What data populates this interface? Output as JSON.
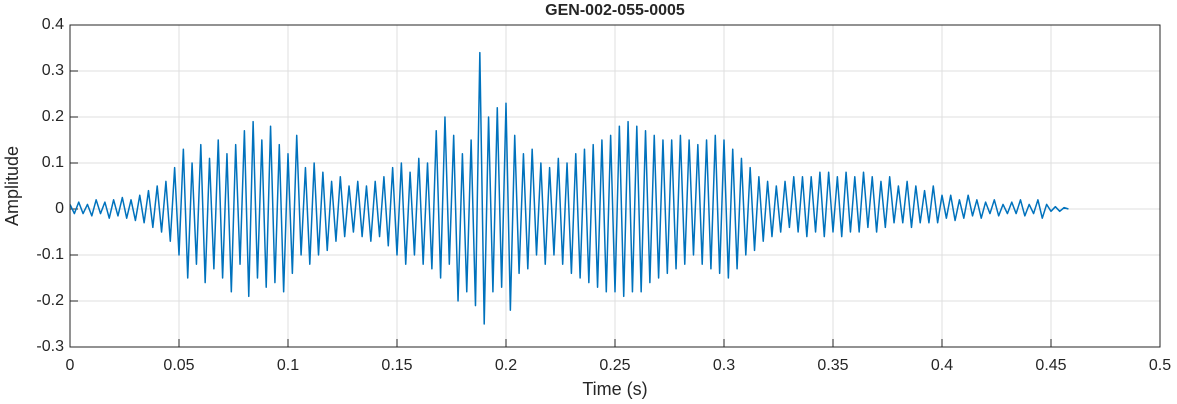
{
  "chart_data": {
    "type": "line",
    "title": "GEN-002-055-0005",
    "xlabel": "Time (s)",
    "ylabel": "Amplitude",
    "xlim": [
      0,
      0.5
    ],
    "ylim": [
      -0.3,
      0.4
    ],
    "xticks": [
      0,
      0.05,
      0.1,
      0.15,
      0.2,
      0.25,
      0.3,
      0.35,
      0.4,
      0.45,
      0.5
    ],
    "yticks": [
      -0.3,
      -0.2,
      -0.1,
      0,
      0.1,
      0.2,
      0.3,
      0.4
    ],
    "grid": true,
    "series": [
      {
        "color": "#0072bd",
        "x": [
          0,
          0.002,
          0.004,
          0.006,
          0.008,
          0.01,
          0.012,
          0.014,
          0.016,
          0.018,
          0.02,
          0.022,
          0.024,
          0.026,
          0.028,
          0.03,
          0.032,
          0.034,
          0.036,
          0.038,
          0.04,
          0.042,
          0.044,
          0.046,
          0.048,
          0.05,
          0.052,
          0.054,
          0.056,
          0.058,
          0.06,
          0.062,
          0.064,
          0.066,
          0.068,
          0.07,
          0.072,
          0.074,
          0.076,
          0.078,
          0.08,
          0.082,
          0.084,
          0.086,
          0.088,
          0.09,
          0.092,
          0.094,
          0.096,
          0.098,
          0.1,
          0.102,
          0.104,
          0.106,
          0.108,
          0.11,
          0.112,
          0.114,
          0.116,
          0.118,
          0.12,
          0.122,
          0.124,
          0.126,
          0.128,
          0.13,
          0.132,
          0.134,
          0.136,
          0.138,
          0.14,
          0.142,
          0.144,
          0.146,
          0.148,
          0.15,
          0.152,
          0.154,
          0.156,
          0.158,
          0.16,
          0.162,
          0.164,
          0.166,
          0.168,
          0.17,
          0.172,
          0.174,
          0.176,
          0.178,
          0.18,
          0.182,
          0.184,
          0.186,
          0.188,
          0.19,
          0.192,
          0.194,
          0.196,
          0.198,
          0.2,
          0.202,
          0.204,
          0.206,
          0.208,
          0.21,
          0.212,
          0.214,
          0.216,
          0.218,
          0.22,
          0.222,
          0.224,
          0.226,
          0.228,
          0.23,
          0.232,
          0.234,
          0.236,
          0.238,
          0.24,
          0.242,
          0.244,
          0.246,
          0.248,
          0.25,
          0.252,
          0.254,
          0.256,
          0.258,
          0.26,
          0.262,
          0.264,
          0.266,
          0.268,
          0.27,
          0.272,
          0.274,
          0.276,
          0.278,
          0.28,
          0.282,
          0.284,
          0.286,
          0.288,
          0.29,
          0.292,
          0.294,
          0.296,
          0.298,
          0.3,
          0.302,
          0.304,
          0.306,
          0.308,
          0.31,
          0.312,
          0.314,
          0.316,
          0.318,
          0.32,
          0.322,
          0.324,
          0.326,
          0.328,
          0.33,
          0.332,
          0.334,
          0.336,
          0.338,
          0.34,
          0.342,
          0.344,
          0.346,
          0.348,
          0.35,
          0.352,
          0.354,
          0.356,
          0.358,
          0.36,
          0.362,
          0.364,
          0.366,
          0.368,
          0.37,
          0.372,
          0.374,
          0.376,
          0.378,
          0.38,
          0.382,
          0.384,
          0.386,
          0.388,
          0.39,
          0.392,
          0.394,
          0.396,
          0.398,
          0.4,
          0.402,
          0.404,
          0.406,
          0.408,
          0.41,
          0.412,
          0.414,
          0.416,
          0.418,
          0.42,
          0.422,
          0.424,
          0.426,
          0.428,
          0.43,
          0.432,
          0.434,
          0.436,
          0.438,
          0.44,
          0.442,
          0.444,
          0.446,
          0.448,
          0.45,
          0.452,
          0.454,
          0.456,
          0.458
        ],
        "values": [
          0.01,
          -0.01,
          0.015,
          -0.01,
          0.01,
          -0.015,
          0.02,
          -0.01,
          0.015,
          -0.02,
          0.02,
          -0.015,
          0.025,
          -0.02,
          0.02,
          -0.025,
          0.03,
          -0.03,
          0.04,
          -0.04,
          0.05,
          -0.05,
          0.06,
          -0.07,
          0.09,
          -0.1,
          0.13,
          -0.15,
          0.1,
          -0.12,
          0.14,
          -0.16,
          0.11,
          -0.13,
          0.15,
          -0.15,
          0.12,
          -0.18,
          0.14,
          -0.12,
          0.17,
          -0.19,
          0.19,
          -0.15,
          0.15,
          -0.17,
          0.18,
          -0.16,
          0.14,
          -0.18,
          0.12,
          -0.14,
          0.16,
          -0.1,
          0.09,
          -0.12,
          0.1,
          -0.1,
          0.08,
          -0.09,
          0.06,
          -0.07,
          0.07,
          -0.06,
          0.05,
          -0.05,
          0.06,
          -0.06,
          0.05,
          -0.07,
          0.06,
          -0.06,
          0.07,
          -0.08,
          0.09,
          -0.1,
          0.1,
          -0.12,
          0.08,
          -0.1,
          0.11,
          -0.12,
          0.1,
          -0.13,
          0.17,
          -0.15,
          0.2,
          -0.12,
          0.16,
          -0.2,
          0.12,
          -0.18,
          0.15,
          -0.21,
          0.34,
          -0.25,
          0.2,
          -0.18,
          0.22,
          -0.17,
          0.23,
          -0.22,
          0.16,
          -0.14,
          0.12,
          -0.13,
          0.13,
          -0.1,
          0.1,
          -0.12,
          0.09,
          -0.1,
          0.11,
          -0.12,
          0.1,
          -0.14,
          0.12,
          -0.15,
          0.13,
          -0.16,
          0.14,
          -0.17,
          0.15,
          -0.18,
          0.16,
          -0.18,
          0.18,
          -0.19,
          0.19,
          -0.18,
          0.18,
          -0.18,
          0.17,
          -0.16,
          0.16,
          -0.15,
          0.15,
          -0.14,
          0.15,
          -0.13,
          0.16,
          -0.12,
          0.15,
          -0.1,
          0.14,
          -0.12,
          0.15,
          -0.13,
          0.16,
          -0.14,
          0.15,
          -0.15,
          0.13,
          -0.13,
          0.11,
          -0.1,
          0.09,
          -0.09,
          0.07,
          -0.07,
          0.06,
          -0.06,
          0.05,
          -0.05,
          0.06,
          -0.04,
          0.07,
          -0.05,
          0.07,
          -0.06,
          0.07,
          -0.05,
          0.08,
          -0.06,
          0.08,
          -0.05,
          0.07,
          -0.06,
          0.08,
          -0.05,
          0.07,
          -0.05,
          0.08,
          -0.04,
          0.07,
          -0.05,
          0.06,
          -0.04,
          0.07,
          -0.03,
          0.05,
          -0.03,
          0.06,
          -0.04,
          0.05,
          -0.03,
          0.04,
          -0.03,
          0.05,
          -0.03,
          0.03,
          -0.02,
          0.03,
          -0.025,
          0.02,
          -0.02,
          0.03,
          -0.015,
          0.02,
          -0.02,
          0.015,
          -0.01,
          0.02,
          -0.015,
          0.01,
          -0.01,
          0.015,
          -0.01,
          0.02,
          -0.015,
          0.01,
          -0.01,
          0.02,
          -0.02,
          0.01,
          -0.005,
          0.005,
          -0.005,
          0.003,
          0
        ]
      }
    ]
  }
}
